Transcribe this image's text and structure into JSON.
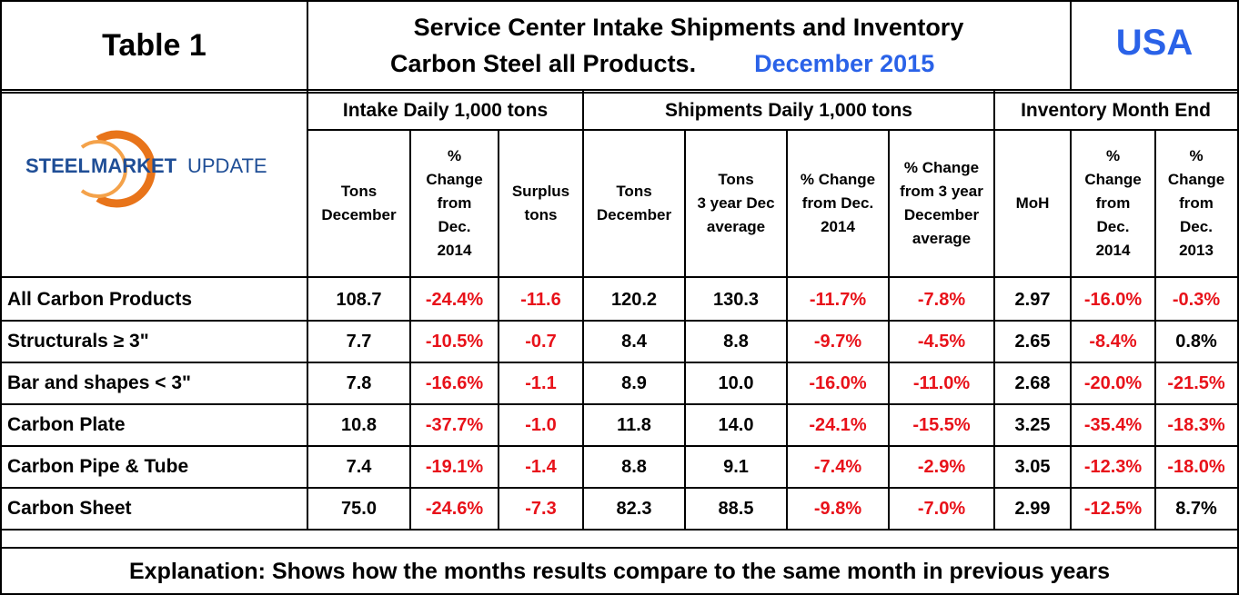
{
  "title_block": {
    "table_label": "Table 1",
    "title_line1": "Service Center Intake Shipments and Inventory",
    "title_line2": "Carbon Steel all Products.",
    "period": "December 2015",
    "region": "USA"
  },
  "logo": {
    "text_steel": "STEEL",
    "text_market": "MARKET",
    "text_update": "UPDATE"
  },
  "groups": {
    "intake": "Intake Daily 1,000 tons",
    "shipments": "Shipments Daily 1,000 tons",
    "inventory": "Inventory Month End"
  },
  "columns": [
    [
      "Tons",
      "December"
    ],
    [
      "%",
      "Change",
      "from",
      "Dec.",
      "2014"
    ],
    [
      "Surplus",
      "tons"
    ],
    [
      "Tons",
      "December"
    ],
    [
      "Tons",
      "3 year Dec",
      "average"
    ],
    [
      "% Change",
      "from Dec.",
      "2014"
    ],
    [
      "% Change",
      "from 3 year",
      "December",
      "average"
    ],
    [
      "MoH"
    ],
    [
      "%",
      "Change",
      "from",
      "Dec.",
      "2014"
    ],
    [
      "%",
      "Change",
      "from",
      "Dec.",
      "2013"
    ]
  ],
  "rows": [
    {
      "label": "All Carbon Products",
      "values": [
        "108.7",
        "-24.4%",
        "-11.6",
        "120.2",
        "130.3",
        "-11.7%",
        "-7.8%",
        "2.97",
        "-16.0%",
        "-0.3%"
      ]
    },
    {
      "label": "Structurals ≥ 3\"",
      "values": [
        "7.7",
        "-10.5%",
        "-0.7",
        "8.4",
        "8.8",
        "-9.7%",
        "-4.5%",
        "2.65",
        "-8.4%",
        "0.8%"
      ]
    },
    {
      "label": "Bar and shapes < 3\"",
      "values": [
        "7.8",
        "-16.6%",
        "-1.1",
        "8.9",
        "10.0",
        "-16.0%",
        "-11.0%",
        "2.68",
        "-20.0%",
        "-21.5%"
      ]
    },
    {
      "label": "Carbon Plate",
      "values": [
        "10.8",
        "-37.7%",
        "-1.0",
        "11.8",
        "14.0",
        "-24.1%",
        "-15.5%",
        "3.25",
        "-35.4%",
        "-18.3%"
      ]
    },
    {
      "label": "Carbon Pipe & Tube",
      "values": [
        "7.4",
        "-19.1%",
        "-1.4",
        "8.8",
        "9.1",
        "-7.4%",
        "-2.9%",
        "3.05",
        "-12.3%",
        "-18.0%"
      ]
    },
    {
      "label": "Carbon Sheet",
      "values": [
        "75.0",
        "-24.6%",
        "-7.3",
        "82.3",
        "88.5",
        "-9.8%",
        "-7.0%",
        "2.99",
        "-12.5%",
        "8.7%"
      ]
    }
  ],
  "explanation": "Explanation: Shows how the months results compare to the same month in previous years",
  "colors": {
    "negative": "#e8121a",
    "positive": "#000000",
    "accent_blue": "#2a62e8",
    "logo_orange": "#e8741a",
    "logo_blue": "#1f4e96"
  }
}
